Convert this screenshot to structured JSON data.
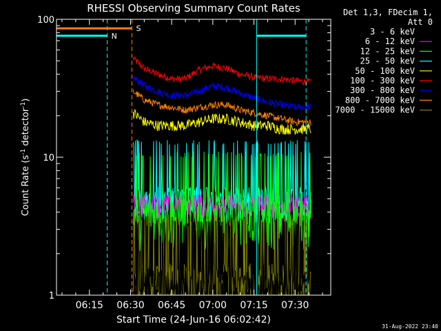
{
  "chart_data": {
    "type": "line",
    "title": "RHESSI Observing Summary Count Rates",
    "xlabel": "Start Time (24-Jun-16 06:02:42)",
    "ylabel": "Count Rate (s",
    "ylabel_sup": "-1",
    "ylabel_rest": " detector",
    "ylabel_tail": ")",
    "y_scale": "log",
    "ylim": [
      1,
      100
    ],
    "y_ticks": [
      {
        "value": 1,
        "label": "1"
      },
      {
        "value": 10,
        "label": "10"
      },
      {
        "value": 100,
        "label": "100"
      }
    ],
    "x_range_min": [
      3,
      43
    ],
    "x_ticks": [
      {
        "value": 15,
        "label": "06:15"
      },
      {
        "value": 30,
        "label": "06:30"
      },
      {
        "value": 45,
        "label": "06:45"
      },
      {
        "value": 60,
        "label": "07:00"
      },
      {
        "value": 75,
        "label": "07:15"
      },
      {
        "value": 90,
        "label": "07:30"
      }
    ],
    "legend_header": [
      "Det 1,3, FDecim 1,",
      "Att 0"
    ],
    "legend_placement": "right",
    "series": [
      {
        "name": "3 - 6 keV",
        "color": "#000000"
      },
      {
        "name": "6 - 12 keV",
        "color": "#ff00ff"
      },
      {
        "name": "12 - 25 keV",
        "color": "#00ff00"
      },
      {
        "name": "25 - 50 keV",
        "color": "#00ffff"
      },
      {
        "name": "50 - 100 keV",
        "color": "#ffff00"
      },
      {
        "name": "100 - 300 keV",
        "color": "#ff0000"
      },
      {
        "name": "300 - 800 keV",
        "color": "#0000ff"
      },
      {
        "name": "800 - 7000 keV",
        "color": "#ff8000"
      },
      {
        "name": "7000 - 15000 keV",
        "color": "#808000"
      }
    ],
    "curves": [
      {
        "series": "100 - 300 keV",
        "color": "#ff0000",
        "start": 31,
        "end": 96,
        "points": [
          [
            31,
            52
          ],
          [
            35,
            44
          ],
          [
            40,
            40
          ],
          [
            45,
            37
          ],
          [
            50,
            37
          ],
          [
            55,
            43
          ],
          [
            60,
            46
          ],
          [
            65,
            44
          ],
          [
            70,
            40
          ],
          [
            75,
            38
          ],
          [
            80,
            37
          ],
          [
            85,
            37
          ],
          [
            90,
            36
          ],
          [
            96,
            35
          ]
        ],
        "noise": 0.06
      },
      {
        "series": "300 - 800 keV",
        "color": "#0000ff",
        "start": 31,
        "end": 96,
        "points": [
          [
            31,
            38
          ],
          [
            35,
            33
          ],
          [
            40,
            30
          ],
          [
            45,
            28
          ],
          [
            50,
            28
          ],
          [
            55,
            30
          ],
          [
            60,
            33
          ],
          [
            65,
            32
          ],
          [
            70,
            29
          ],
          [
            75,
            27
          ],
          [
            80,
            25
          ],
          [
            85,
            24
          ],
          [
            90,
            23
          ],
          [
            96,
            23
          ]
        ],
        "noise": 0.06
      },
      {
        "series": "800 - 7000 keV",
        "color": "#ff8000",
        "start": 31,
        "end": 96,
        "points": [
          [
            31,
            30
          ],
          [
            35,
            26
          ],
          [
            40,
            24
          ],
          [
            45,
            23
          ],
          [
            50,
            22
          ],
          [
            55,
            23
          ],
          [
            60,
            24
          ],
          [
            65,
            24
          ],
          [
            70,
            22
          ],
          [
            75,
            21
          ],
          [
            80,
            20
          ],
          [
            85,
            19
          ],
          [
            90,
            18
          ],
          [
            96,
            18
          ]
        ],
        "noise": 0.06
      },
      {
        "series": "50 - 100 keV",
        "color": "#ffff00",
        "start": 31,
        "end": 96,
        "points": [
          [
            31,
            21
          ],
          [
            35,
            18
          ],
          [
            40,
            17
          ],
          [
            45,
            17
          ],
          [
            50,
            17
          ],
          [
            55,
            18
          ],
          [
            60,
            19
          ],
          [
            65,
            19
          ],
          [
            70,
            18
          ],
          [
            75,
            17
          ],
          [
            80,
            17
          ],
          [
            85,
            16
          ],
          [
            90,
            16
          ],
          [
            96,
            16
          ]
        ],
        "noise": 0.09
      },
      {
        "series": "25 - 50 keV",
        "color": "#00ffff",
        "start": 31,
        "end": 96,
        "points": [
          [
            31,
            5
          ],
          [
            96,
            5
          ]
        ],
        "noise": 0.22
      },
      {
        "series": "6 - 12 keV",
        "color": "#ff00ff",
        "start": 31,
        "end": 96,
        "points": [
          [
            31,
            4.5
          ],
          [
            96,
            4.5
          ]
        ],
        "noise": 0.2
      },
      {
        "series": "12 - 25 keV",
        "color": "#00ff00",
        "start": 31,
        "end": 96,
        "points": [
          [
            31,
            3.8
          ],
          [
            96,
            3.8
          ]
        ],
        "noise": 0.3
      },
      {
        "series": "7000 - 15000 keV",
        "color": "#808000",
        "start": 31,
        "end": 96,
        "points": [
          [
            31,
            1.2
          ],
          [
            96,
            1.2
          ]
        ],
        "noise": 0.4
      },
      {
        "series": "3 - 6 keV",
        "color": "#000000",
        "start": 31,
        "end": 96,
        "points": [
          [
            31,
            1.2
          ],
          [
            96,
            1.2
          ]
        ],
        "noise": 0.3
      }
    ],
    "flags": [
      {
        "label": "N",
        "color": "#00ffff",
        "value": 76,
        "x_from": 3,
        "x_to": 21.5
      },
      {
        "label": "S",
        "color": "#ff8000",
        "value": 86,
        "x_from": 3,
        "x_to": 30.5
      },
      {
        "label": "",
        "color": "#00ffff",
        "value": 76,
        "x_from": 76,
        "x_to": 94
      }
    ],
    "vlines": [
      {
        "value": 21.5,
        "color": "#00ffff",
        "style": "dashed"
      },
      {
        "value": 30.5,
        "color": "#ff8000",
        "style": "dashed"
      },
      {
        "value": 76,
        "color": "#00ffff",
        "style": "solid"
      },
      {
        "value": 94,
        "color": "#00ffff",
        "style": "dashed"
      }
    ]
  },
  "footer": {
    "timestamp": "31-Aug-2022 23:40"
  }
}
